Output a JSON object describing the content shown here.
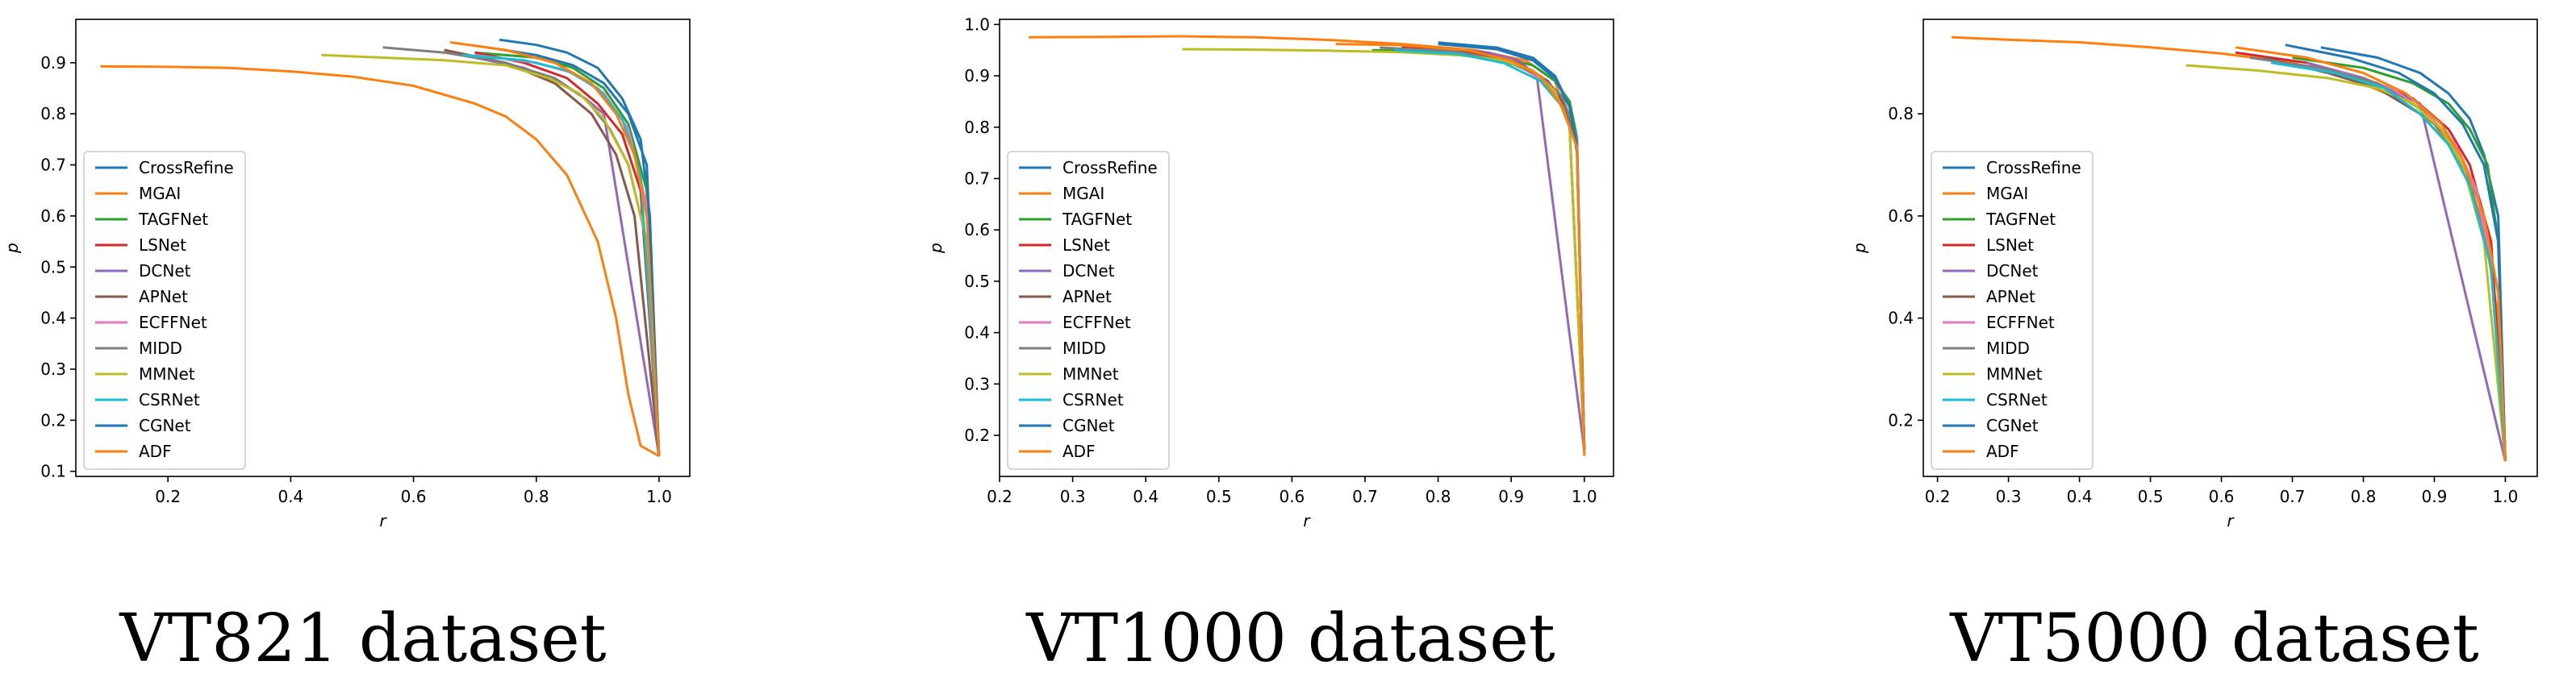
{
  "legend_names": [
    "CrossRefine",
    "MGAI",
    "TAGFNet",
    "LSNet",
    "DCNet",
    "APNet",
    "ECFFNet",
    "MIDD",
    "MMNet",
    "CSRNet",
    "CGNet",
    "ADF"
  ],
  "legend_colors": [
    "#1f77b4",
    "#ff7f0e",
    "#2ca02c",
    "#d62728",
    "#9467bd",
    "#8c564b",
    "#e377c2",
    "#7f7f7f",
    "#bcbd22",
    "#17becf",
    "#1f77b4",
    "#ff7f0e"
  ],
  "chart_data": [
    {
      "type": "line",
      "title": "",
      "caption": "VT821 dataset",
      "xlabel": "r",
      "ylabel": "p",
      "xlim": [
        0.05,
        1.05
      ],
      "ylim": [
        0.09,
        0.985
      ],
      "xticks": [
        0.2,
        0.4,
        0.6,
        0.8,
        1.0
      ],
      "xtick_labels": [
        "0.2",
        "0.4",
        "0.6",
        "0.8",
        "1.0"
      ],
      "yticks": [
        0.1,
        0.2,
        0.3,
        0.4,
        0.5,
        0.6,
        0.7,
        0.8,
        0.9
      ],
      "ytick_labels": [
        "0.1",
        "0.2",
        "0.3",
        "0.4",
        "0.5",
        "0.6",
        "0.7",
        "0.8",
        "0.9"
      ],
      "legend_position": "lower-left",
      "series": [
        {
          "name": "CrossRefine",
          "x": [
            0.74,
            0.8,
            0.85,
            0.9,
            0.94,
            0.97,
            0.985,
            1.0
          ],
          "y": [
            0.945,
            0.935,
            0.92,
            0.89,
            0.83,
            0.75,
            0.6,
            0.13
          ]
        },
        {
          "name": "MGAI",
          "x": [
            0.09,
            0.2,
            0.3,
            0.4,
            0.5,
            0.6,
            0.7,
            0.75,
            0.8,
            0.85,
            0.9,
            0.93,
            0.95,
            0.97,
            1.0
          ],
          "y": [
            0.893,
            0.892,
            0.89,
            0.883,
            0.873,
            0.855,
            0.82,
            0.795,
            0.75,
            0.68,
            0.55,
            0.4,
            0.25,
            0.15,
            0.13
          ]
        },
        {
          "name": "TAGFNet",
          "x": [
            0.7,
            0.8,
            0.86,
            0.91,
            0.95,
            0.98,
            1.0
          ],
          "y": [
            0.92,
            0.91,
            0.89,
            0.85,
            0.78,
            0.65,
            0.13
          ]
        },
        {
          "name": "LSNet",
          "x": [
            0.7,
            0.78,
            0.85,
            0.9,
            0.94,
            0.97,
            1.0
          ],
          "y": [
            0.92,
            0.9,
            0.87,
            0.82,
            0.76,
            0.65,
            0.13
          ]
        },
        {
          "name": "DCNet",
          "x": [
            0.7,
            0.78,
            0.84,
            0.88,
            0.91,
            1.0
          ],
          "y": [
            0.91,
            0.89,
            0.86,
            0.83,
            0.8,
            0.13
          ]
        },
        {
          "name": "APNet",
          "x": [
            0.65,
            0.75,
            0.83,
            0.89,
            0.93,
            0.96,
            1.0
          ],
          "y": [
            0.925,
            0.9,
            0.86,
            0.8,
            0.72,
            0.6,
            0.13
          ]
        },
        {
          "name": "ECFFNet",
          "x": [
            0.7,
            0.8,
            0.86,
            0.91,
            0.95,
            0.98,
            1.0
          ],
          "y": [
            0.915,
            0.9,
            0.88,
            0.84,
            0.77,
            0.62,
            0.13
          ]
        },
        {
          "name": "MIDD",
          "x": [
            0.55,
            0.65,
            0.75,
            0.83,
            0.88,
            0.92,
            0.95,
            0.98,
            1.0
          ],
          "y": [
            0.93,
            0.92,
            0.9,
            0.87,
            0.83,
            0.77,
            0.7,
            0.55,
            0.13
          ]
        },
        {
          "name": "MMNet",
          "x": [
            0.45,
            0.55,
            0.65,
            0.75,
            0.82,
            0.87,
            0.91,
            0.95,
            0.98,
            1.0
          ],
          "y": [
            0.915,
            0.91,
            0.905,
            0.895,
            0.87,
            0.84,
            0.79,
            0.7,
            0.55,
            0.13
          ]
        },
        {
          "name": "CSRNet",
          "x": [
            0.68,
            0.78,
            0.85,
            0.9,
            0.94,
            0.97,
            1.0
          ],
          "y": [
            0.915,
            0.905,
            0.885,
            0.85,
            0.79,
            0.68,
            0.13
          ]
        },
        {
          "name": "CGNet",
          "x": [
            0.72,
            0.8,
            0.86,
            0.91,
            0.95,
            0.98,
            1.0
          ],
          "y": [
            0.93,
            0.915,
            0.895,
            0.86,
            0.8,
            0.7,
            0.13
          ]
        },
        {
          "name": "ADF",
          "x": [
            0.66,
            0.75,
            0.83,
            0.89,
            0.93,
            0.96,
            0.98,
            1.0
          ],
          "y": [
            0.94,
            0.925,
            0.9,
            0.86,
            0.8,
            0.72,
            0.6,
            0.13
          ]
        }
      ]
    },
    {
      "type": "line",
      "title": "",
      "caption": "VT1000 dataset",
      "xlabel": "r",
      "ylabel": "p",
      "xlim": [
        0.2,
        1.04
      ],
      "ylim": [
        0.12,
        1.01
      ],
      "xticks": [
        0.2,
        0.3,
        0.4,
        0.5,
        0.6,
        0.7,
        0.8,
        0.9,
        1.0
      ],
      "xtick_labels": [
        "0.2",
        "0.3",
        "0.4",
        "0.5",
        "0.6",
        "0.7",
        "0.8",
        "0.9",
        "1.0"
      ],
      "yticks": [
        0.2,
        0.3,
        0.4,
        0.5,
        0.6,
        0.7,
        0.8,
        0.9,
        1.0
      ],
      "ytick_labels": [
        "0.2",
        "0.3",
        "0.4",
        "0.5",
        "0.6",
        "0.7",
        "0.8",
        "0.9",
        "1.0"
      ],
      "legend_position": "lower-left",
      "series": [
        {
          "name": "CrossRefine",
          "x": [
            0.8,
            0.88,
            0.93,
            0.96,
            0.98,
            0.99,
            1.0
          ],
          "y": [
            0.965,
            0.955,
            0.935,
            0.9,
            0.84,
            0.75,
            0.17
          ]
        },
        {
          "name": "MGAI",
          "x": [
            0.24,
            0.35,
            0.45,
            0.55,
            0.65,
            0.75,
            0.85,
            0.92,
            0.96,
            0.98,
            1.0
          ],
          "y": [
            0.975,
            0.976,
            0.977,
            0.975,
            0.97,
            0.962,
            0.95,
            0.93,
            0.89,
            0.8,
            0.17
          ]
        },
        {
          "name": "TAGFNet",
          "x": [
            0.71,
            0.8,
            0.88,
            0.93,
            0.96,
            0.98,
            0.99,
            1.0
          ],
          "y": [
            0.95,
            0.948,
            0.94,
            0.92,
            0.89,
            0.85,
            0.78,
            0.17
          ]
        },
        {
          "name": "LSNet",
          "x": [
            0.75,
            0.83,
            0.89,
            0.93,
            0.96,
            0.98,
            1.0
          ],
          "y": [
            0.955,
            0.948,
            0.935,
            0.91,
            0.87,
            0.8,
            0.17
          ]
        },
        {
          "name": "DCNet",
          "x": [
            0.8,
            0.87,
            0.91,
            0.935,
            1.0
          ],
          "y": [
            0.955,
            0.945,
            0.93,
            0.9,
            0.17
          ]
        },
        {
          "name": "APNet",
          "x": [
            0.78,
            0.86,
            0.91,
            0.95,
            0.97,
            0.99,
            1.0
          ],
          "y": [
            0.955,
            0.945,
            0.925,
            0.89,
            0.85,
            0.77,
            0.17
          ]
        },
        {
          "name": "ECFFNet",
          "x": [
            0.76,
            0.85,
            0.91,
            0.95,
            0.97,
            0.99,
            1.0
          ],
          "y": [
            0.95,
            0.94,
            0.92,
            0.885,
            0.84,
            0.76,
            0.17
          ]
        },
        {
          "name": "MIDD",
          "x": [
            0.72,
            0.82,
            0.89,
            0.94,
            0.97,
            0.99,
            1.0
          ],
          "y": [
            0.955,
            0.948,
            0.93,
            0.9,
            0.86,
            0.78,
            0.17
          ]
        },
        {
          "name": "MMNet",
          "x": [
            0.45,
            0.55,
            0.65,
            0.75,
            0.83,
            0.89,
            0.93,
            0.96,
            0.98,
            1.0
          ],
          "y": [
            0.952,
            0.951,
            0.949,
            0.946,
            0.94,
            0.93,
            0.91,
            0.87,
            0.8,
            0.17
          ]
        },
        {
          "name": "CSRNet",
          "x": [
            0.74,
            0.83,
            0.89,
            0.94,
            0.97,
            0.99,
            1.0
          ],
          "y": [
            0.95,
            0.942,
            0.925,
            0.89,
            0.84,
            0.76,
            0.17
          ]
        },
        {
          "name": "CGNet",
          "x": [
            0.8,
            0.88,
            0.93,
            0.96,
            0.98,
            0.99,
            1.0
          ],
          "y": [
            0.962,
            0.952,
            0.93,
            0.895,
            0.84,
            0.76,
            0.17
          ]
        },
        {
          "name": "ADF",
          "x": [
            0.66,
            0.75,
            0.84,
            0.9,
            0.94,
            0.97,
            0.99,
            1.0
          ],
          "y": [
            0.962,
            0.96,
            0.95,
            0.93,
            0.9,
            0.84,
            0.76,
            0.16
          ]
        }
      ]
    },
    {
      "type": "line",
      "title": "",
      "caption": "VT5000 dataset",
      "xlabel": "r",
      "ylabel": "p",
      "xlim": [
        0.18,
        1.045
      ],
      "ylim": [
        0.09,
        0.985
      ],
      "xticks": [
        0.2,
        0.3,
        0.4,
        0.5,
        0.6,
        0.7,
        0.8,
        0.9,
        1.0
      ],
      "xtick_labels": [
        "0.2",
        "0.3",
        "0.4",
        "0.5",
        "0.6",
        "0.7",
        "0.8",
        "0.9",
        "1.0"
      ],
      "yticks": [
        0.2,
        0.4,
        0.6,
        0.8
      ],
      "ytick_labels": [
        "0.2",
        "0.4",
        "0.6",
        "0.8"
      ],
      "legend_position": "lower-left",
      "series": [
        {
          "name": "CrossRefine",
          "x": [
            0.74,
            0.82,
            0.88,
            0.92,
            0.95,
            0.97,
            0.99,
            1.0
          ],
          "y": [
            0.93,
            0.91,
            0.88,
            0.84,
            0.79,
            0.72,
            0.6,
            0.12
          ]
        },
        {
          "name": "MGAI",
          "x": [
            0.22,
            0.3,
            0.4,
            0.5,
            0.6,
            0.7,
            0.78,
            0.85,
            0.9,
            0.94,
            0.97,
            0.99,
            1.0
          ],
          "y": [
            0.95,
            0.945,
            0.94,
            0.93,
            0.918,
            0.9,
            0.87,
            0.83,
            0.78,
            0.7,
            0.58,
            0.4,
            0.12
          ]
        },
        {
          "name": "TAGFNet",
          "x": [
            0.7,
            0.8,
            0.87,
            0.92,
            0.95,
            0.975,
            0.99,
            1.0
          ],
          "y": [
            0.91,
            0.89,
            0.86,
            0.82,
            0.77,
            0.7,
            0.55,
            0.12
          ]
        },
        {
          "name": "LSNet",
          "x": [
            0.62,
            0.72,
            0.8,
            0.87,
            0.92,
            0.95,
            0.98,
            1.0
          ],
          "y": [
            0.92,
            0.9,
            0.87,
            0.83,
            0.77,
            0.7,
            0.55,
            0.12
          ]
        },
        {
          "name": "DCNet",
          "x": [
            0.72,
            0.8,
            0.85,
            0.88,
            1.0
          ],
          "y": [
            0.9,
            0.87,
            0.84,
            0.82,
            0.12
          ]
        },
        {
          "name": "APNet",
          "x": [
            0.66,
            0.75,
            0.82,
            0.88,
            0.92,
            0.95,
            0.98,
            1.0
          ],
          "y": [
            0.91,
            0.88,
            0.85,
            0.8,
            0.74,
            0.66,
            0.5,
            0.12
          ]
        },
        {
          "name": "ECFFNet",
          "x": [
            0.68,
            0.77,
            0.84,
            0.89,
            0.93,
            0.96,
            0.98,
            1.0
          ],
          "y": [
            0.9,
            0.88,
            0.85,
            0.8,
            0.74,
            0.65,
            0.5,
            0.12
          ]
        },
        {
          "name": "MIDD",
          "x": [
            0.64,
            0.74,
            0.82,
            0.88,
            0.92,
            0.95,
            0.98,
            1.0
          ],
          "y": [
            0.91,
            0.89,
            0.86,
            0.81,
            0.75,
            0.67,
            0.5,
            0.12
          ]
        },
        {
          "name": "MMNet",
          "x": [
            0.55,
            0.65,
            0.75,
            0.82,
            0.87,
            0.91,
            0.94,
            0.97,
            1.0
          ],
          "y": [
            0.895,
            0.885,
            0.87,
            0.85,
            0.82,
            0.77,
            0.7,
            0.55,
            0.12
          ]
        },
        {
          "name": "CSRNet",
          "x": [
            0.67,
            0.76,
            0.83,
            0.88,
            0.92,
            0.95,
            0.98,
            1.0
          ],
          "y": [
            0.9,
            0.88,
            0.85,
            0.8,
            0.74,
            0.66,
            0.5,
            0.12
          ]
        },
        {
          "name": "CGNet",
          "x": [
            0.69,
            0.78,
            0.85,
            0.9,
            0.94,
            0.97,
            0.99,
            1.0
          ],
          "y": [
            0.935,
            0.91,
            0.88,
            0.84,
            0.78,
            0.7,
            0.55,
            0.12
          ]
        },
        {
          "name": "ADF",
          "x": [
            0.62,
            0.72,
            0.8,
            0.86,
            0.91,
            0.94,
            0.97,
            0.99,
            1.0
          ],
          "y": [
            0.93,
            0.91,
            0.88,
            0.84,
            0.78,
            0.71,
            0.6,
            0.45,
            0.12
          ]
        }
      ]
    }
  ]
}
